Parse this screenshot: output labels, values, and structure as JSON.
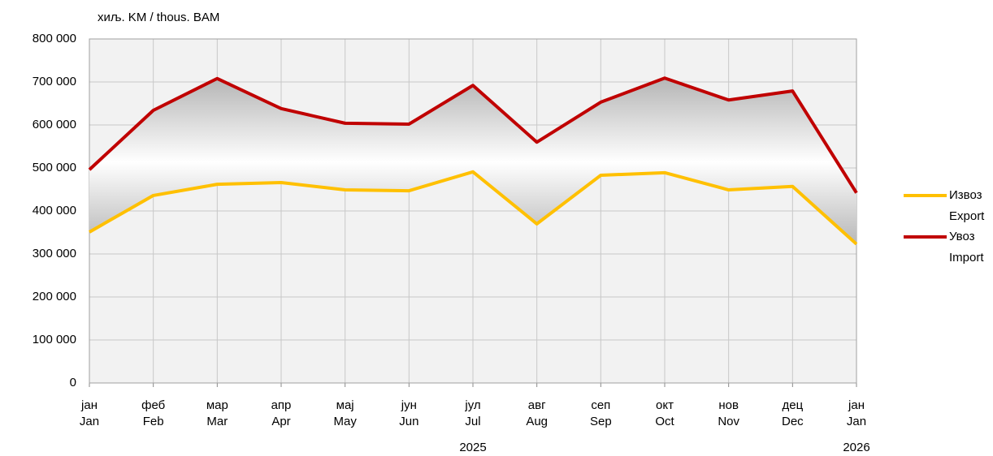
{
  "chart_data": {
    "type": "line",
    "unit_label": "хиљ. KM / thous. BAM",
    "categories": [
      [
        "јан",
        "Jan"
      ],
      [
        "феб",
        "Feb"
      ],
      [
        "мар",
        "Mar"
      ],
      [
        "апр",
        "Apr"
      ],
      [
        "мај",
        "May"
      ],
      [
        "јун",
        "Jun"
      ],
      [
        "јул",
        "Jul"
      ],
      [
        "авг",
        "Aug"
      ],
      [
        "сеп",
        "Sep"
      ],
      [
        "окт",
        "Oct"
      ],
      [
        "нов",
        "Nov"
      ],
      [
        "дец",
        "Dec"
      ],
      [
        "јан",
        "Jan"
      ]
    ],
    "years": [
      null,
      null,
      null,
      null,
      null,
      null,
      "2025",
      null,
      null,
      null,
      null,
      null,
      "2026"
    ],
    "series": [
      {
        "name": "Извоз",
        "name_en": "Export",
        "color": "#ffc000",
        "values": [
          351000,
          436000,
          462000,
          466000,
          449000,
          447000,
          491000,
          370000,
          483000,
          489000,
          449000,
          457000,
          323000
        ]
      },
      {
        "name": "Увоз",
        "name_en": "Import",
        "color": "#c00000",
        "values": [
          496000,
          634000,
          708000,
          638000,
          604000,
          602000,
          692000,
          560000,
          653000,
          709000,
          658000,
          679000,
          442000
        ]
      }
    ],
    "ylim": [
      0,
      800000
    ],
    "yticks": [
      0,
      {
        "value": 100000,
        "label": "100 000"
      },
      {
        "value": 200000,
        "label": "200 000"
      },
      {
        "value": 300000,
        "label": "300 000"
      },
      {
        "value": 400000,
        "label": "400 000"
      },
      {
        "value": 500000,
        "label": "500 000"
      },
      {
        "value": 600000,
        "label": "600 000"
      },
      {
        "value": 700000,
        "label": "700 000"
      },
      {
        "value": 800000,
        "label": "800 000"
      }
    ],
    "grid": true
  }
}
